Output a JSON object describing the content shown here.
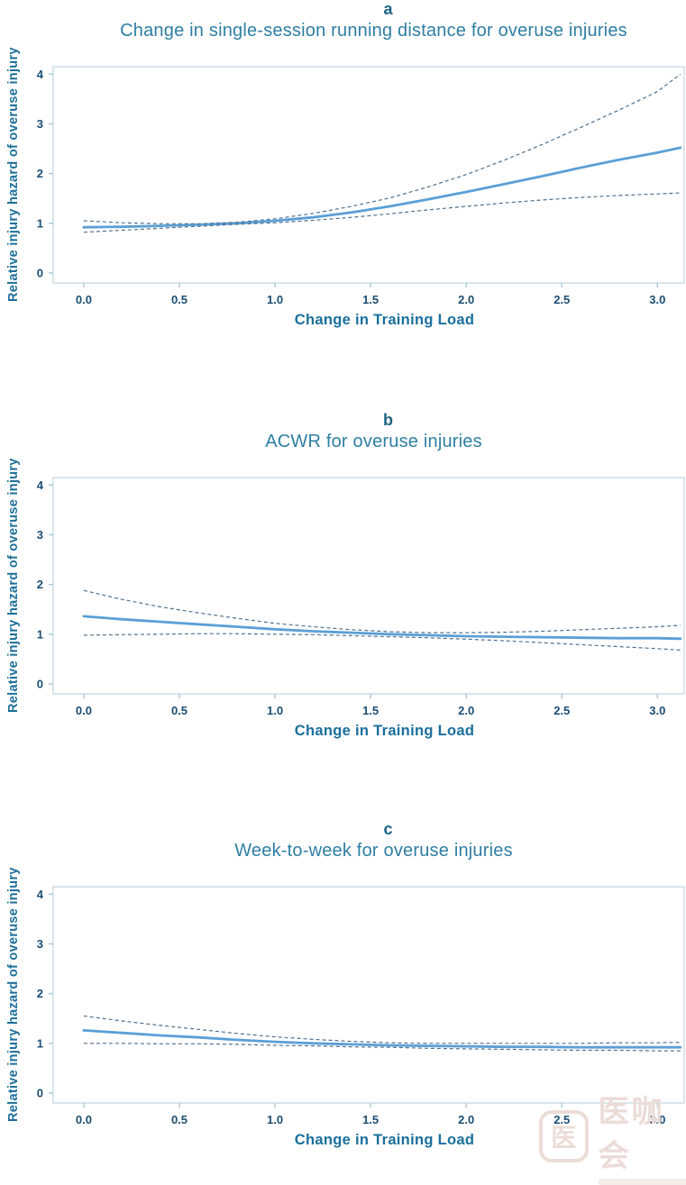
{
  "figure": {
    "background": "#ffffff",
    "colors": {
      "title": "#2f7ea3",
      "panel_letter": "#1d6385",
      "axis_label": "#1a6f9c",
      "tick_label": "#1b4d72",
      "solid_line": "#5b9fd6",
      "dashed_line": "#50708e",
      "plot_border": "#b3cbda"
    },
    "panels": [
      {
        "letter": "a",
        "title": "Change in single-session running distance for overuse injuries",
        "xlabel": "Change in Training Load",
        "ylabel": "Relative injury hazard of overuse injury"
      },
      {
        "letter": "b",
        "title": "ACWR for overuse injuries",
        "xlabel": "Change in Training Load",
        "ylabel": "Relative injury hazard of overuse injury"
      },
      {
        "letter": "c",
        "title": "Week-to-week for overuse injuries",
        "xlabel": "Change in Training Load",
        "ylabel": "Relative injury hazard of overuse injury"
      }
    ],
    "watermark": {
      "logo_char": "医",
      "text": "医咖会"
    }
  },
  "chart_data": [
    {
      "type": "line",
      "panel_label": "a",
      "title": "Change in single-session running distance for overuse injuries",
      "xlabel": "Change in Training Load",
      "ylabel": "Relative injury hazard of overuse injury",
      "xlim": [
        -0.16,
        3.14
      ],
      "ylim": [
        -0.2,
        4.15
      ],
      "xticks": [
        0.0,
        0.5,
        1.0,
        1.5,
        2.0,
        2.5,
        3.0
      ],
      "xtick_labels": [
        "0.0",
        "0.5",
        "1.0",
        "1.5",
        "2.0",
        "2.5",
        "3.0"
      ],
      "yticks": [
        0,
        1,
        2,
        3,
        4
      ],
      "grid": false,
      "legend": "none",
      "x": [
        0,
        0.2,
        0.4,
        0.6,
        0.8,
        1.0,
        1.2,
        1.4,
        1.6,
        1.8,
        2.0,
        2.2,
        2.4,
        2.6,
        2.8,
        3.0,
        3.12
      ],
      "series": [
        {
          "name": "estimate",
          "style": "solid",
          "values": [
            0.92,
            0.93,
            0.95,
            0.97,
            1.0,
            1.05,
            1.12,
            1.22,
            1.34,
            1.48,
            1.63,
            1.79,
            1.95,
            2.12,
            2.28,
            2.42,
            2.52
          ]
        },
        {
          "name": "upper-95-ci",
          "style": "dashed",
          "values": [
            1.05,
            1.01,
            0.99,
            0.99,
            1.02,
            1.09,
            1.2,
            1.34,
            1.51,
            1.73,
            1.98,
            2.27,
            2.59,
            2.93,
            3.28,
            3.65,
            4.0
          ]
        },
        {
          "name": "lower-95-ci",
          "style": "dashed",
          "values": [
            0.82,
            0.86,
            0.9,
            0.94,
            0.98,
            1.01,
            1.06,
            1.12,
            1.19,
            1.27,
            1.34,
            1.41,
            1.47,
            1.52,
            1.56,
            1.59,
            1.61
          ]
        }
      ]
    },
    {
      "type": "line",
      "panel_label": "b",
      "title": "ACWR for overuse injuries",
      "xlabel": "Change in Training Load",
      "ylabel": "Relative injury hazard of overuse injury",
      "xlim": [
        -0.16,
        3.14
      ],
      "ylim": [
        -0.2,
        4.15
      ],
      "xticks": [
        0.0,
        0.5,
        1.0,
        1.5,
        2.0,
        2.5,
        3.0
      ],
      "xtick_labels": [
        "0.0",
        "0.5",
        "1.0",
        "1.5",
        "2.0",
        "2.5",
        "3.0"
      ],
      "yticks": [
        0,
        1,
        2,
        3,
        4
      ],
      "grid": false,
      "legend": "none",
      "x": [
        0,
        0.2,
        0.4,
        0.6,
        0.8,
        1.0,
        1.2,
        1.4,
        1.6,
        1.8,
        2.0,
        2.2,
        2.4,
        2.6,
        2.8,
        3.0,
        3.12
      ],
      "series": [
        {
          "name": "estimate",
          "style": "solid",
          "values": [
            1.36,
            1.3,
            1.25,
            1.2,
            1.15,
            1.1,
            1.06,
            1.03,
            1.0,
            0.98,
            0.96,
            0.95,
            0.94,
            0.93,
            0.92,
            0.92,
            0.91
          ]
        },
        {
          "name": "upper-95-ci",
          "style": "dashed",
          "values": [
            1.88,
            1.7,
            1.55,
            1.43,
            1.32,
            1.22,
            1.15,
            1.09,
            1.05,
            1.03,
            1.03,
            1.04,
            1.06,
            1.09,
            1.12,
            1.15,
            1.18
          ]
        },
        {
          "name": "lower-95-ci",
          "style": "dashed",
          "values": [
            0.98,
            0.99,
            1.0,
            1.01,
            1.01,
            1.0,
            0.99,
            0.97,
            0.95,
            0.93,
            0.9,
            0.87,
            0.83,
            0.79,
            0.75,
            0.71,
            0.68
          ]
        }
      ]
    },
    {
      "type": "line",
      "panel_label": "c",
      "title": "Week-to-week for overuse injuries",
      "xlabel": "Change in Training Load",
      "ylabel": "Relative injury hazard of overuse injury",
      "xlim": [
        -0.16,
        3.14
      ],
      "ylim": [
        -0.2,
        4.15
      ],
      "xticks": [
        0.0,
        0.5,
        1.0,
        1.5,
        2.0,
        2.5,
        3.0
      ],
      "xtick_labels": [
        "0.0",
        "0.5",
        "1.0",
        "1.5",
        "2.0",
        "2.5",
        "3.0"
      ],
      "yticks": [
        0,
        1,
        2,
        3,
        4
      ],
      "grid": false,
      "legend": "none",
      "x": [
        0,
        0.2,
        0.4,
        0.6,
        0.8,
        1.0,
        1.2,
        1.4,
        1.6,
        1.8,
        2.0,
        2.2,
        2.4,
        2.6,
        2.8,
        3.0,
        3.12
      ],
      "series": [
        {
          "name": "estimate",
          "style": "solid",
          "values": [
            1.26,
            1.21,
            1.16,
            1.12,
            1.07,
            1.03,
            1.0,
            0.98,
            0.96,
            0.95,
            0.94,
            0.93,
            0.93,
            0.92,
            0.92,
            0.92,
            0.92
          ]
        },
        {
          "name": "upper-95-ci",
          "style": "dashed",
          "values": [
            1.55,
            1.45,
            1.36,
            1.28,
            1.2,
            1.13,
            1.08,
            1.04,
            1.01,
            1.0,
            1.0,
            1.0,
            1.0,
            1.0,
            1.01,
            1.01,
            1.02
          ]
        },
        {
          "name": "lower-95-ci",
          "style": "dashed",
          "values": [
            1.0,
            1.0,
            0.99,
            0.99,
            0.98,
            0.96,
            0.95,
            0.93,
            0.92,
            0.9,
            0.89,
            0.88,
            0.87,
            0.86,
            0.86,
            0.85,
            0.85
          ]
        }
      ]
    }
  ]
}
